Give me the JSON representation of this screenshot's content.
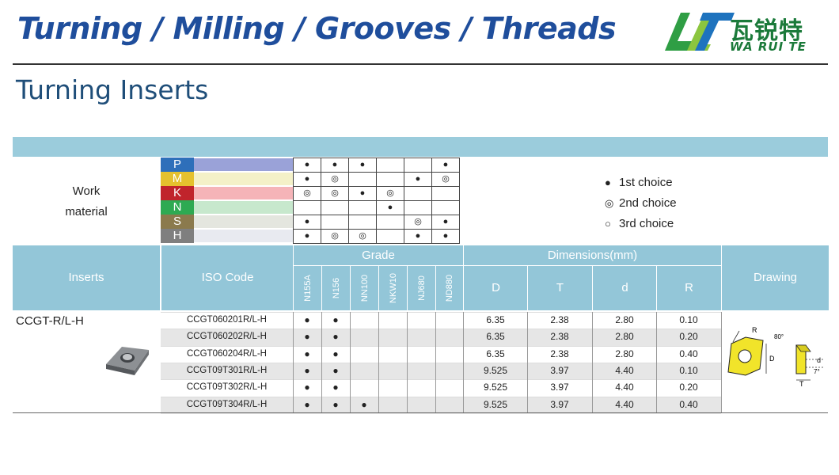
{
  "header": {
    "banner": "Turning / Milling / Grooves / Threads",
    "logo_cn": "瓦锐特",
    "logo_en": "WA RUI TE",
    "page_title": "Turning Inserts"
  },
  "work_material": {
    "label_line1": "Work",
    "label_line2": "material",
    "groups": [
      {
        "code": "P",
        "color": "#2e6fba",
        "band": "#9aa2d8"
      },
      {
        "code": "M",
        "color": "#e5c12e",
        "band": "#f4f1c8"
      },
      {
        "code": "K",
        "color": "#c0242c",
        "band": "#f5b4b8"
      },
      {
        "code": "N",
        "color": "#2eaa52",
        "band": "#c7e8cd"
      },
      {
        "code": "S",
        "color": "#8b7a4d",
        "band": "#e4e6df"
      },
      {
        "code": "H",
        "color": "#7f7f7f",
        "band": "#e8eaf0"
      }
    ],
    "marks": [
      [
        "●",
        "●",
        "●",
        "",
        "",
        "●"
      ],
      [
        "●",
        "◎",
        "",
        "",
        "●",
        "◎"
      ],
      [
        "◎",
        "◎",
        "●",
        "◎",
        "",
        ""
      ],
      [
        "",
        "",
        "",
        "●",
        "",
        ""
      ],
      [
        "●",
        "",
        "",
        "",
        "◎",
        "●"
      ],
      [
        "●",
        "◎",
        "◎",
        "",
        "●",
        "●"
      ]
    ]
  },
  "legend": [
    {
      "symbol": "●",
      "label": "1st choice"
    },
    {
      "symbol": "◎",
      "label": "2nd choice"
    },
    {
      "symbol": "○",
      "label": "3rd choice"
    }
  ],
  "table": {
    "col_inserts": "Inserts",
    "col_iso": "ISO Code",
    "col_grade": "Grade",
    "col_dims": "Dimensions(mm)",
    "col_drawing": "Drawing",
    "grades": [
      "N155A",
      "N156",
      "NN100",
      "NKW10",
      "NJ680",
      "ND880"
    ],
    "dims": [
      "D",
      "T",
      "d",
      "R"
    ],
    "insert_name": "CCGT-R/L-H",
    "rows": [
      {
        "iso": "CCGT060201R/L-H",
        "grades": [
          "●",
          "●",
          "",
          "",
          "",
          ""
        ],
        "D": "6.35",
        "T": "2.38",
        "d": "2.80",
        "R": "0.10"
      },
      {
        "iso": "CCGT060202R/L-H",
        "grades": [
          "●",
          "●",
          "",
          "",
          "",
          ""
        ],
        "D": "6.35",
        "T": "2.38",
        "d": "2.80",
        "R": "0.20"
      },
      {
        "iso": "CCGT060204R/L-H",
        "grades": [
          "●",
          "●",
          "",
          "",
          "",
          ""
        ],
        "D": "6.35",
        "T": "2.38",
        "d": "2.80",
        "R": "0.40"
      },
      {
        "iso": "CCGT09T301R/L-H",
        "grades": [
          "●",
          "●",
          "",
          "",
          "",
          ""
        ],
        "D": "9.525",
        "T": "3.97",
        "d": "4.40",
        "R": "0.10"
      },
      {
        "iso": "CCGT09T302R/L-H",
        "grades": [
          "●",
          "●",
          "",
          "",
          "",
          ""
        ],
        "D": "9.525",
        "T": "3.97",
        "d": "4.40",
        "R": "0.20"
      },
      {
        "iso": "CCGT09T304R/L-H",
        "grades": [
          "●",
          "●",
          "●",
          "",
          "",
          ""
        ],
        "D": "9.525",
        "T": "3.97",
        "d": "4.40",
        "R": "0.40"
      }
    ],
    "drawing_labels": {
      "R": "R",
      "angle1": "80°",
      "D": "D",
      "d": "d",
      "T": "T",
      "angle2": "7°"
    }
  }
}
